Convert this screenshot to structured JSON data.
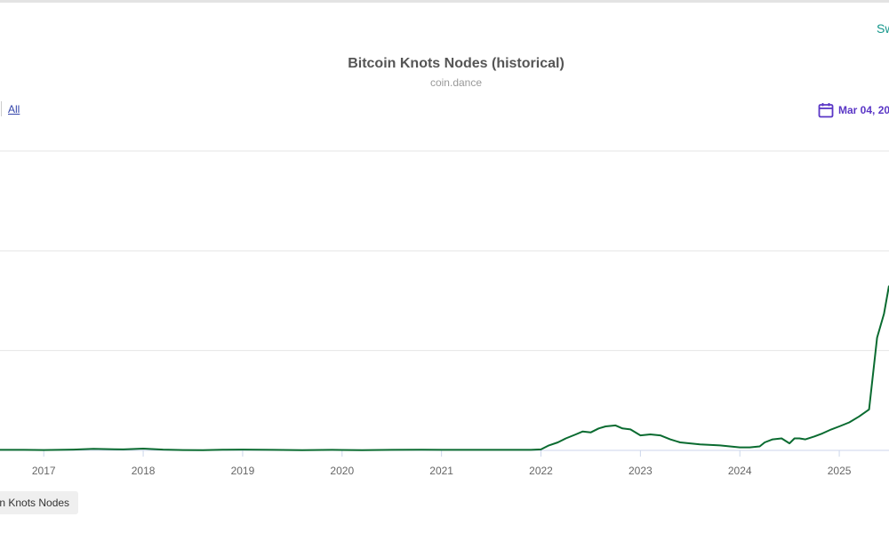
{
  "header": {
    "switch_label": "Sw"
  },
  "range_selector": {
    "all_label": "All"
  },
  "date_picker": {
    "value": "Mar 04, 20",
    "icon": "calendar-icon",
    "color": "#5a36c6"
  },
  "legend": {
    "entry_label": "oin Knots Nodes"
  },
  "chart_data": {
    "type": "line",
    "title": "Bitcoin Knots Nodes (historical)",
    "subtitle": "coin.dance",
    "x_tick_labels": [
      "2017",
      "2018",
      "2019",
      "2020",
      "2021",
      "2022",
      "2023",
      "2024",
      "2025"
    ],
    "x_range": [
      2016.56,
      2025.5
    ],
    "y_range": [
      0,
      300
    ],
    "grid": "horizontal",
    "line_color": "#0a6b30",
    "series": [
      {
        "name": "Bitcoin Knots Nodes",
        "x": [
          2016.56,
          2016.8,
          2017.0,
          2017.3,
          2017.5,
          2017.8,
          2018.0,
          2018.2,
          2018.4,
          2018.6,
          2018.8,
          2019.0,
          2019.3,
          2019.6,
          2019.9,
          2020.2,
          2020.5,
          2020.8,
          2021.0,
          2021.3,
          2021.6,
          2021.9,
          2022.0,
          2022.08,
          2022.17,
          2022.25,
          2022.35,
          2022.42,
          2022.5,
          2022.58,
          2022.65,
          2022.75,
          2022.82,
          2022.9,
          2023.0,
          2023.1,
          2023.2,
          2023.3,
          2023.4,
          2023.6,
          2023.8,
          2024.0,
          2024.1,
          2024.2,
          2024.25,
          2024.33,
          2024.42,
          2024.5,
          2024.55,
          2024.6,
          2024.66,
          2024.75,
          2024.83,
          2024.92,
          2025.0,
          2025.1,
          2025.2,
          2025.3,
          2025.38,
          2025.45,
          2025.5
        ],
        "y": [
          0.5,
          0.5,
          0.4,
          0.8,
          1.5,
          1.0,
          1.8,
          0.8,
          0.4,
          0.2,
          0.6,
          0.8,
          0.5,
          0.3,
          0.5,
          0.3,
          0.5,
          0.7,
          0.5,
          0.5,
          0.5,
          0.5,
          1.0,
          5,
          8,
          12,
          16,
          19,
          18,
          22,
          24,
          25,
          22,
          21,
          15,
          16,
          15,
          11,
          8,
          6,
          5,
          3,
          3,
          4,
          8,
          11,
          12,
          7,
          12,
          12,
          11,
          14,
          17,
          21,
          24,
          28,
          34,
          41,
          113,
          137,
          165
        ]
      }
    ]
  }
}
